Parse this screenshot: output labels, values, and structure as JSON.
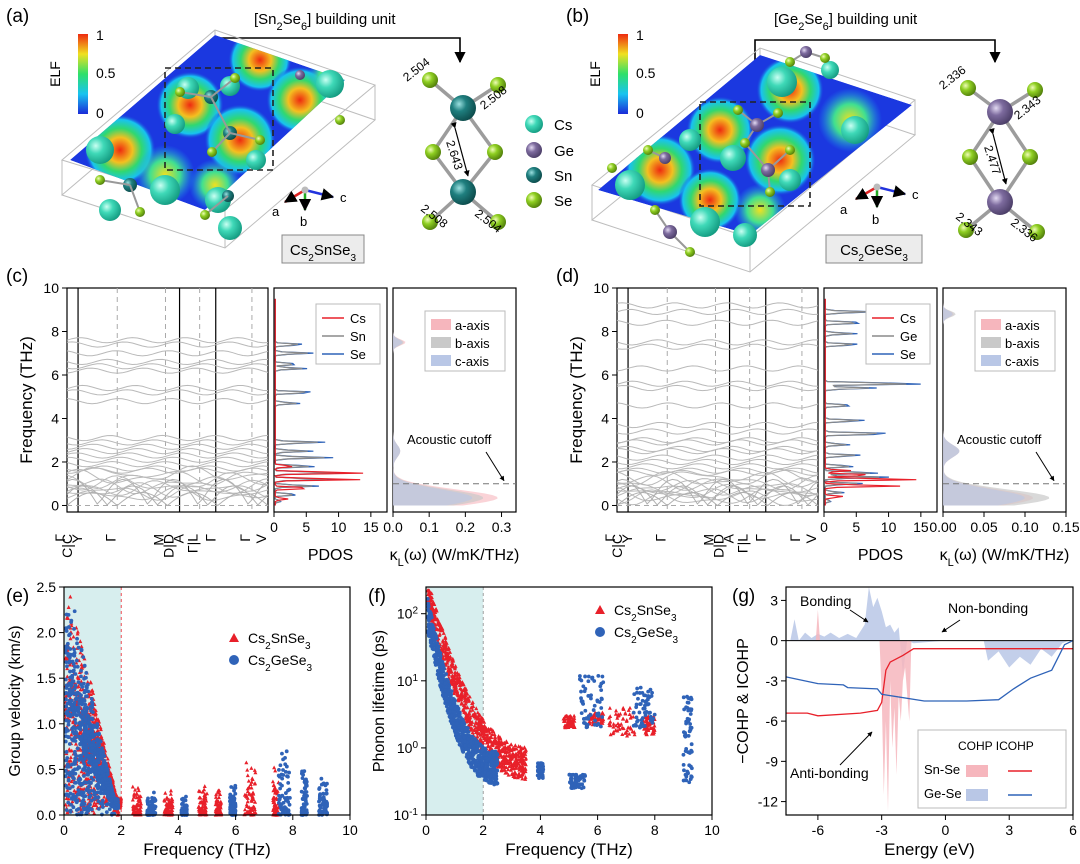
{
  "figure": {
    "panel_a": {
      "letter": "(a)",
      "unit_title_pre": "[Sn",
      "unit_sub1": "2",
      "unit_mid": "Se",
      "unit_sub2": "6",
      "unit_post": "] building unit",
      "elf_label": "ELF",
      "elf_ticks": [
        "1",
        "0.5",
        "0"
      ],
      "bonds": [
        "2.504",
        "2.508",
        "2.643",
        "2.508",
        "2.504"
      ],
      "formula": {
        "a": "Cs",
        "s1": "2",
        "b": "SnSe",
        "s2": "3"
      }
    },
    "panel_b": {
      "letter": "(b)",
      "unit_title_pre": "[Ge",
      "unit_sub1": "2",
      "unit_mid": "Se",
      "unit_sub2": "6",
      "unit_post": "] building unit",
      "elf_label": "ELF",
      "elf_ticks": [
        "1",
        "0.5",
        "0"
      ],
      "bonds": [
        "2.336",
        "2.343",
        "2.477",
        "2.343",
        "2.336"
      ],
      "formula": {
        "a": "Cs",
        "s1": "2",
        "b": "GeSe",
        "s2": "3"
      }
    },
    "atoms_legend": [
      {
        "label": "Cs",
        "color": "#3fd9b8"
      },
      {
        "label": "Ge",
        "color": "#7d6b9e"
      },
      {
        "label": "Sn",
        "color": "#1f7f7f"
      },
      {
        "label": "Se",
        "color": "#8fcf22"
      }
    ],
    "axes_triad": {
      "a": "a",
      "b": "b",
      "c": "c"
    },
    "panel_c": {
      "letter": "(c)",
      "ylabel": "Frequency (THz)",
      "yticks": [
        "0",
        "2",
        "4",
        "6",
        "8",
        "10"
      ],
      "kpath": [
        "Γ",
        "C|C",
        "2",
        "Y",
        "Γ",
        "M",
        "D|D",
        "2",
        "A",
        "Γ|L",
        "Γ",
        "V"
      ],
      "pdos": {
        "xlabel": "PDOS",
        "xticks": [
          "0",
          "5",
          "10",
          "15"
        ],
        "legend": [
          "Cs",
          "Sn",
          "Se"
        ]
      },
      "kappa": {
        "xlabel_a": "κ",
        "xlabel_sub": "L",
        "xlabel_b": "(ω) (W/mK/THz)",
        "xticks": [
          "0.0",
          "0.1",
          "0.2",
          "0.3"
        ],
        "legend": [
          "a-axis",
          "b-axis",
          "c-axis"
        ],
        "annotation": "Acoustic cutoff"
      }
    },
    "panel_d": {
      "letter": "(d)",
      "ylabel": "Frequency (THz)",
      "yticks": [
        "0",
        "2",
        "4",
        "6",
        "8",
        "10"
      ],
      "kpath": [
        "Γ",
        "C|C",
        "2",
        "Y",
        "Γ",
        "M",
        "D|D",
        "2",
        "A",
        "Γ|L",
        "Γ",
        "V"
      ],
      "pdos": {
        "xlabel": "PDOS",
        "xticks": [
          "0",
          "5",
          "10",
          "15"
        ],
        "legend": [
          "Cs",
          "Ge",
          "Se"
        ]
      },
      "kappa": {
        "xlabel_a": "κ",
        "xlabel_sub": "L",
        "xlabel_b": "(ω) (W/mK/THz)",
        "xticks": [
          "0.00",
          "0.05",
          "0.10",
          "0.15"
        ],
        "legend": [
          "a-axis",
          "b-axis",
          "c-axis"
        ],
        "annotation": "Acoustic cutoff"
      }
    },
    "panel_e": {
      "letter": "(e)",
      "xlabel": "Frequency (THz)",
      "ylabel": "Group velocity (km/s)",
      "xticks": [
        "0",
        "2",
        "4",
        "6",
        "8",
        "10"
      ],
      "yticks": [
        "0.0",
        "0.5",
        "1.0",
        "1.5",
        "2.0",
        "2.5"
      ],
      "legend": [
        {
          "a": "Cs",
          "s1": "2",
          "b": "SnSe",
          "s2": "3"
        },
        {
          "a": "Cs",
          "s1": "2",
          "b": "GeSe",
          "s2": "3"
        }
      ]
    },
    "panel_f": {
      "letter": "(f)",
      "xlabel": "Frequency (THz)",
      "ylabel": "Phonon lifetime (ps)",
      "xticks": [
        "0",
        "2",
        "4",
        "6",
        "8",
        "10"
      ],
      "yticks": [
        {
          "b": "10",
          "e": "-1"
        },
        {
          "b": "10",
          "e": "0"
        },
        {
          "b": "10",
          "e": "1"
        },
        {
          "b": "10",
          "e": "2"
        }
      ],
      "legend": [
        {
          "a": "Cs",
          "s1": "2",
          "b": "SnSe",
          "s2": "3"
        },
        {
          "a": "Cs",
          "s1": "2",
          "b": "GeSe",
          "s2": "3"
        }
      ]
    },
    "panel_g": {
      "letter": "(g)",
      "xlabel": "Energy (eV)",
      "ylabel": "−COHP & ICOHP",
      "xticks": [
        "-6",
        "-3",
        "0",
        "3",
        "6"
      ],
      "yticks": [
        "3",
        "0",
        "-3",
        "-6",
        "-9",
        "-12"
      ],
      "annotations": [
        "Bonding",
        "Non-bonding",
        "Anti-bonding"
      ],
      "legend_head": "COHP ICOHP",
      "legend_rows": [
        "Sn-Se",
        "Ge-Se"
      ]
    }
  },
  "colors": {
    "red": "#e8202a",
    "blue": "#2f63b8",
    "gray": "#8a8a8a",
    "pink_fill": "#f6b6bd",
    "gray_fill": "#c9c9c9",
    "blue_fill": "#b9c7e6",
    "shade": "#d7eeee"
  },
  "chart_data": [
    {
      "type": "scatter",
      "panel": "e",
      "xlabel": "Frequency (THz)",
      "ylabel": "Group velocity (km/s)",
      "xlim": [
        0,
        10
      ],
      "ylim": [
        0,
        2.5
      ],
      "shaded_region": [
        0,
        2
      ],
      "series": [
        {
          "name": "Cs2SnSe3",
          "marker": "triangle",
          "clusters": [
            {
              "x": [
                0.05,
                2.0
              ],
              "y": [
                0,
                2.4
              ]
            },
            {
              "x": [
                2.4,
                2.7
              ],
              "y": [
                0,
                0.35
              ]
            },
            {
              "x": [
                3.5,
                3.8
              ],
              "y": [
                0,
                0.3
              ]
            },
            {
              "x": [
                4.7,
                5.0
              ],
              "y": [
                0,
                0.35
              ]
            },
            {
              "x": [
                5.3,
                5.5
              ],
              "y": [
                0,
                0.3
              ]
            },
            {
              "x": [
                6.3,
                6.7
              ],
              "y": [
                0,
                0.65
              ]
            },
            {
              "x": [
                7.3,
                7.5
              ],
              "y": [
                0,
                0.55
              ]
            }
          ]
        },
        {
          "name": "Cs2GeSe3",
          "marker": "circle",
          "clusters": [
            {
              "x": [
                0.05,
                1.9
              ],
              "y": [
                0,
                2.3
              ]
            },
            {
              "x": [
                2.9,
                3.2
              ],
              "y": [
                0,
                0.3
              ]
            },
            {
              "x": [
                4.1,
                4.3
              ],
              "y": [
                0,
                0.25
              ]
            },
            {
              "x": [
                5.8,
                6.0
              ],
              "y": [
                0,
                0.35
              ]
            },
            {
              "x": [
                7.5,
                7.9
              ],
              "y": [
                0,
                0.85
              ]
            },
            {
              "x": [
                8.3,
                8.5
              ],
              "y": [
                0,
                0.55
              ]
            },
            {
              "x": [
                8.9,
                9.2
              ],
              "y": [
                0,
                0.5
              ]
            }
          ]
        }
      ]
    },
    {
      "type": "scatter",
      "panel": "f",
      "xlabel": "Frequency (THz)",
      "ylabel": "Phonon lifetime (ps)",
      "xlim": [
        0,
        10
      ],
      "ylim": [
        0.1,
        200
      ],
      "yscale": "log",
      "shaded_region": [
        0,
        2
      ],
      "series": [
        {
          "name": "Cs2SnSe3",
          "marker": "triangle",
          "clusters": [
            {
              "x": [
                0.05,
                3.5
              ],
              "y": [
                0.6,
                200
              ]
            },
            {
              "x": [
                4.8,
                5.2
              ],
              "y": [
                2,
                3
              ]
            },
            {
              "x": [
                5.7,
                6.2
              ],
              "y": [
                2.2,
                3.5
              ]
            },
            {
              "x": [
                6.4,
                7.3
              ],
              "y": [
                1.5,
                4
              ]
            },
            {
              "x": [
                7.6,
                8.0
              ],
              "y": [
                1.5,
                3
              ]
            }
          ]
        },
        {
          "name": "Cs2GeSe3",
          "marker": "circle",
          "clusters": [
            {
              "x": [
                0.05,
                2.5
              ],
              "y": [
                0.5,
                100
              ]
            },
            {
              "x": [
                3.9,
                4.1
              ],
              "y": [
                0.35,
                0.6
              ]
            },
            {
              "x": [
                5.3,
                6.2
              ],
              "y": [
                2,
                12
              ]
            },
            {
              "x": [
                5.0,
                5.6
              ],
              "y": [
                0.25,
                0.4
              ]
            },
            {
              "x": [
                7.2,
                8.0
              ],
              "y": [
                2,
                8
              ]
            },
            {
              "x": [
                9.0,
                9.3
              ],
              "y": [
                0.3,
                6
              ]
            }
          ]
        }
      ]
    },
    {
      "type": "line",
      "panel": "g",
      "xlabel": "Energy (eV)",
      "ylabel": "−COHP & ICOHP",
      "xlim": [
        -7.5,
        6
      ],
      "ylim": [
        -13,
        4
      ],
      "series": [
        {
          "name": "Sn-Se",
          "curve": "ICOHP",
          "x": [
            -7.5,
            -6.5,
            -6.0,
            -4,
            -3.2,
            -3.0,
            -2.8,
            -2.6,
            -2.0,
            -1.5,
            0,
            1.5,
            6
          ],
          "y": [
            -5.4,
            -5.4,
            -5.6,
            -5.4,
            -5.2,
            -4.6,
            -2.2,
            -1.6,
            -1.1,
            -0.6,
            -0.6,
            -0.6,
            -0.6
          ]
        },
        {
          "name": "Ge-Se",
          "curve": "ICOHP",
          "x": [
            -7.5,
            -6,
            -4.8,
            -4.6,
            -3.2,
            -3.0,
            -1.0,
            1.0,
            2.5,
            3.2,
            4.0,
            5.0,
            5.6,
            6
          ],
          "y": [
            -2.7,
            -3.2,
            -3.3,
            -3.5,
            -3.6,
            -4.0,
            -4.5,
            -4.5,
            -4.4,
            -3.6,
            -2.8,
            -2.2,
            -0.3,
            0
          ]
        },
        {
          "name": "Sn-Se",
          "curve": "COHP",
          "x": [
            -6.1,
            -6.0,
            -5.9,
            -3.1,
            -3.0,
            -2.9,
            -2.8,
            -2.7,
            -2.6,
            -2.5,
            -2.4,
            -2.3,
            -2.2,
            -2.1,
            -2.0,
            -1.9,
            -1.8,
            -1.7,
            -1.6
          ],
          "y": [
            0,
            2.3,
            0,
            0,
            -4,
            -11.5,
            -6,
            -12.7,
            -3,
            -8,
            -5,
            -10,
            -4,
            -6,
            -3,
            -2,
            -4,
            -6,
            0
          ]
        },
        {
          "name": "Ge-Se",
          "curve": "COHP",
          "x": [
            -7.3,
            -7.1,
            -6.9,
            -6.6,
            -6.3,
            -6.0,
            -5.7,
            -5.4,
            -5.0,
            -4.6,
            -4.2,
            -3.8,
            -3.6,
            -3.4,
            -3.2,
            -3.0,
            -2.8,
            -2.6,
            -2.4,
            -2.2,
            -2.0,
            -1.8,
            -1.5,
            0,
            1.8,
            2.0,
            2.5,
            3.0,
            3.5,
            4.0,
            4.5,
            5.0,
            5.5,
            5.8
          ],
          "y": [
            0,
            1.6,
            0,
            0.6,
            0.2,
            0.5,
            0.3,
            0.6,
            0.2,
            0.5,
            0.2,
            1.2,
            4.0,
            2.5,
            3.2,
            2.2,
            1.0,
            1.2,
            0.6,
            1.0,
            -2.5,
            0,
            -0.2,
            0,
            0,
            -1.5,
            -0.8,
            -2.0,
            -1.2,
            -1.8,
            -0.6,
            -1.2,
            -0.2,
            0
          ]
        }
      ]
    }
  ]
}
